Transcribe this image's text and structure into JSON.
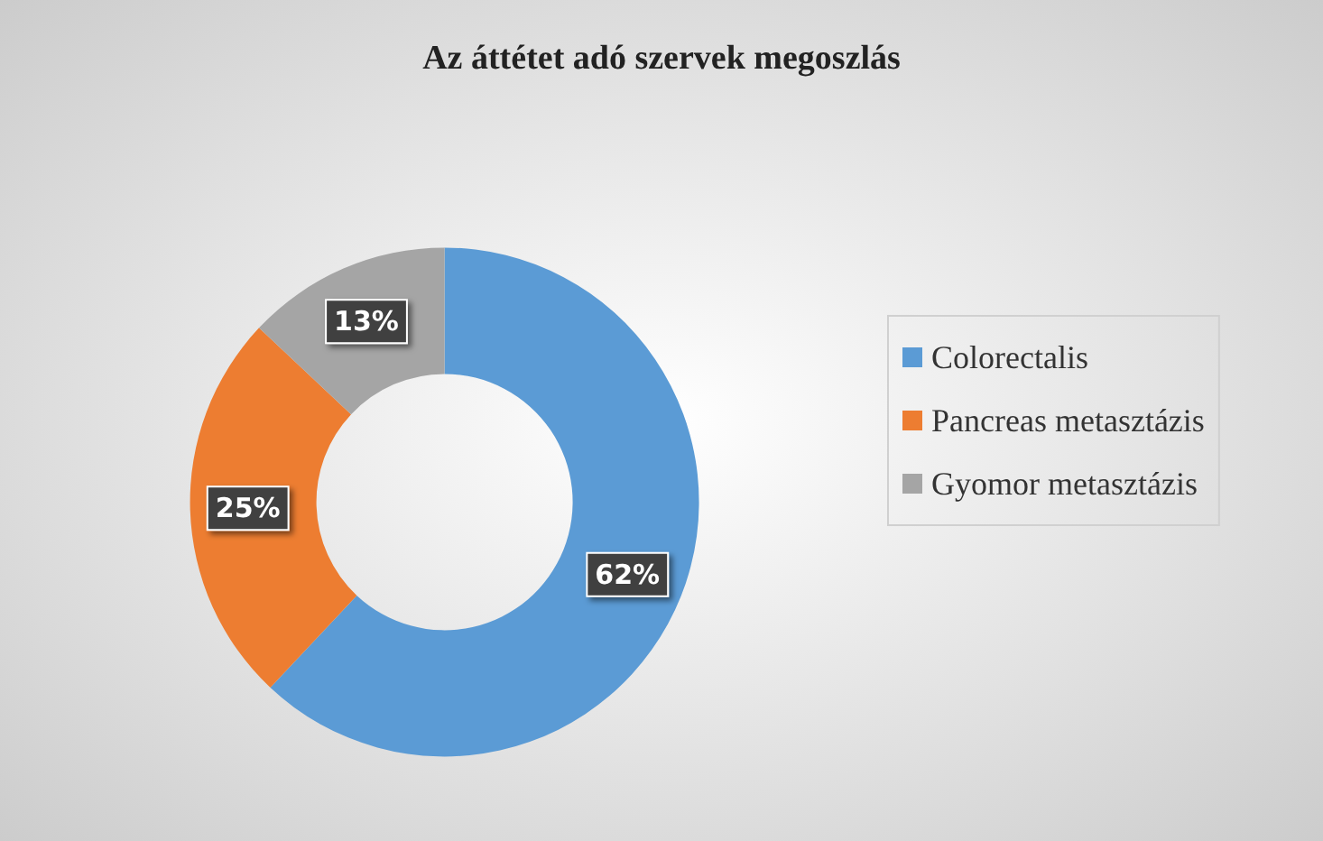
{
  "chart_data": {
    "type": "donut",
    "title": "Az áttétet adó szervek megoszlás",
    "categories": [
      "Colorectalis",
      "Pancreas metasztázis",
      "Gyomor metasztázis"
    ],
    "values": [
      62,
      25,
      13
    ],
    "colors": [
      "#5b9bd5",
      "#ed7d31",
      "#a5a5a5"
    ],
    "value_labels": [
      "62%",
      "25%",
      "13%"
    ],
    "legend": "right"
  }
}
